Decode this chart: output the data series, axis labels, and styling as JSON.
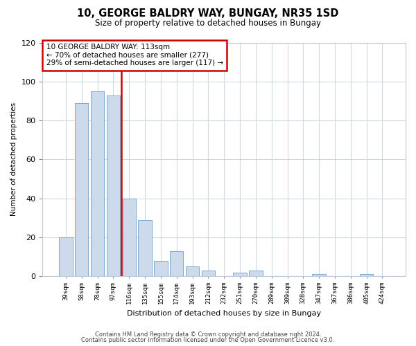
{
  "title": "10, GEORGE BALDRY WAY, BUNGAY, NR35 1SD",
  "subtitle": "Size of property relative to detached houses in Bungay",
  "xlabel": "Distribution of detached houses by size in Bungay",
  "ylabel": "Number of detached properties",
  "categories": [
    "39sqm",
    "58sqm",
    "78sqm",
    "97sqm",
    "116sqm",
    "135sqm",
    "155sqm",
    "174sqm",
    "193sqm",
    "212sqm",
    "232sqm",
    "251sqm",
    "270sqm",
    "289sqm",
    "309sqm",
    "328sqm",
    "347sqm",
    "367sqm",
    "386sqm",
    "405sqm",
    "424sqm"
  ],
  "values": [
    20,
    89,
    95,
    93,
    40,
    29,
    8,
    13,
    5,
    3,
    0,
    2,
    3,
    0,
    0,
    0,
    1,
    0,
    0,
    1,
    0
  ],
  "bar_color": "#ccdaeb",
  "bar_edge_color": "#7fa8cc",
  "highlight_color": "#cc0000",
  "red_line_after_index": 3,
  "ylim": [
    0,
    120
  ],
  "yticks": [
    0,
    20,
    40,
    60,
    80,
    100,
    120
  ],
  "annotation_text": "10 GEORGE BALDRY WAY: 113sqm\n← 70% of detached houses are smaller (277)\n29% of semi-detached houses are larger (117) →",
  "annotation_box_color": "#ffffff",
  "annotation_box_edge": "#cc0000",
  "footer1": "Contains HM Land Registry data © Crown copyright and database right 2024.",
  "footer2": "Contains public sector information licensed under the Open Government Licence v3.0.",
  "bg_color": "#ffffff",
  "grid_color": "#cdd9e5",
  "title_fontsize": 10.5,
  "subtitle_fontsize": 8.5
}
